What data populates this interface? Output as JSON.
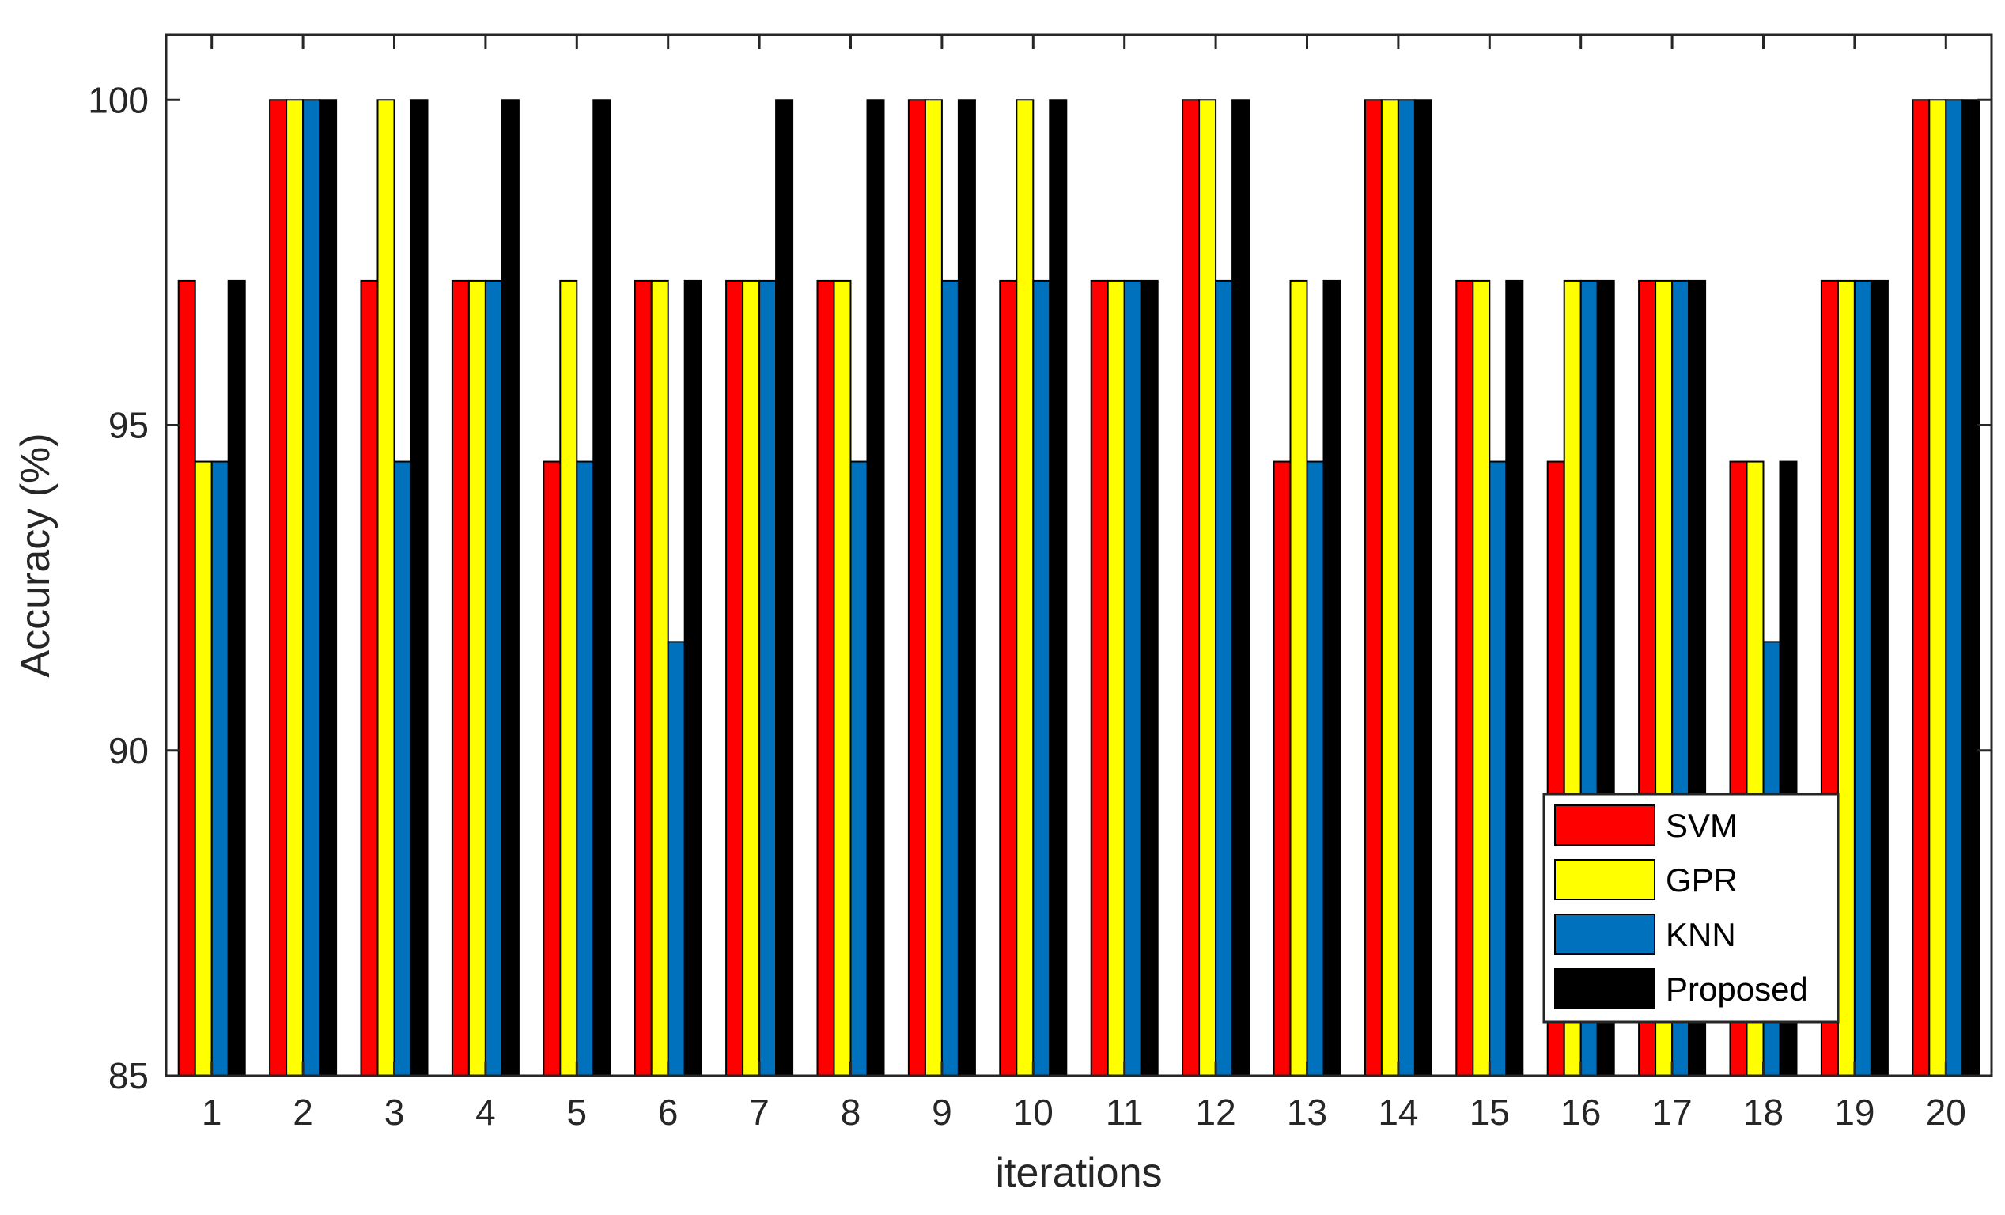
{
  "chart_data": {
    "type": "bar",
    "title": "",
    "xlabel": "iterations",
    "ylabel": "Accuracy (%)",
    "categories": [
      "1",
      "2",
      "3",
      "4",
      "5",
      "6",
      "7",
      "8",
      "9",
      "10",
      "11",
      "12",
      "13",
      "14",
      "15",
      "16",
      "17",
      "18",
      "19",
      "20"
    ],
    "ylim": [
      85,
      101
    ],
    "yticks": [
      "85",
      "90",
      "95",
      "100"
    ],
    "grid": false,
    "legend_position": "bottom-right",
    "series": [
      {
        "name": "SVM",
        "color": "#ff0000",
        "values": [
          97.22,
          100,
          97.22,
          97.22,
          94.44,
          97.22,
          97.22,
          97.22,
          100,
          97.22,
          97.22,
          100,
          94.44,
          100,
          97.22,
          94.44,
          97.22,
          94.44,
          97.22,
          100
        ]
      },
      {
        "name": "GPR",
        "color": "#ffff00",
        "values": [
          94.44,
          100,
          100,
          97.22,
          97.22,
          97.22,
          97.22,
          97.22,
          100,
          100,
          97.22,
          100,
          97.22,
          100,
          97.22,
          97.22,
          97.22,
          94.44,
          97.22,
          100
        ]
      },
      {
        "name": "KNN",
        "color": "#0072bd",
        "values": [
          94.44,
          100,
          94.44,
          97.22,
          94.44,
          91.67,
          97.22,
          94.44,
          97.22,
          97.22,
          97.22,
          97.22,
          94.44,
          100,
          94.44,
          97.22,
          97.22,
          91.67,
          97.22,
          100
        ]
      },
      {
        "name": "Proposed",
        "color": "#000000",
        "values": [
          97.22,
          100,
          100,
          100,
          100,
          97.22,
          100,
          100,
          100,
          100,
          97.22,
          100,
          97.22,
          100,
          97.22,
          97.22,
          97.22,
          94.44,
          97.22,
          100
        ]
      }
    ]
  }
}
